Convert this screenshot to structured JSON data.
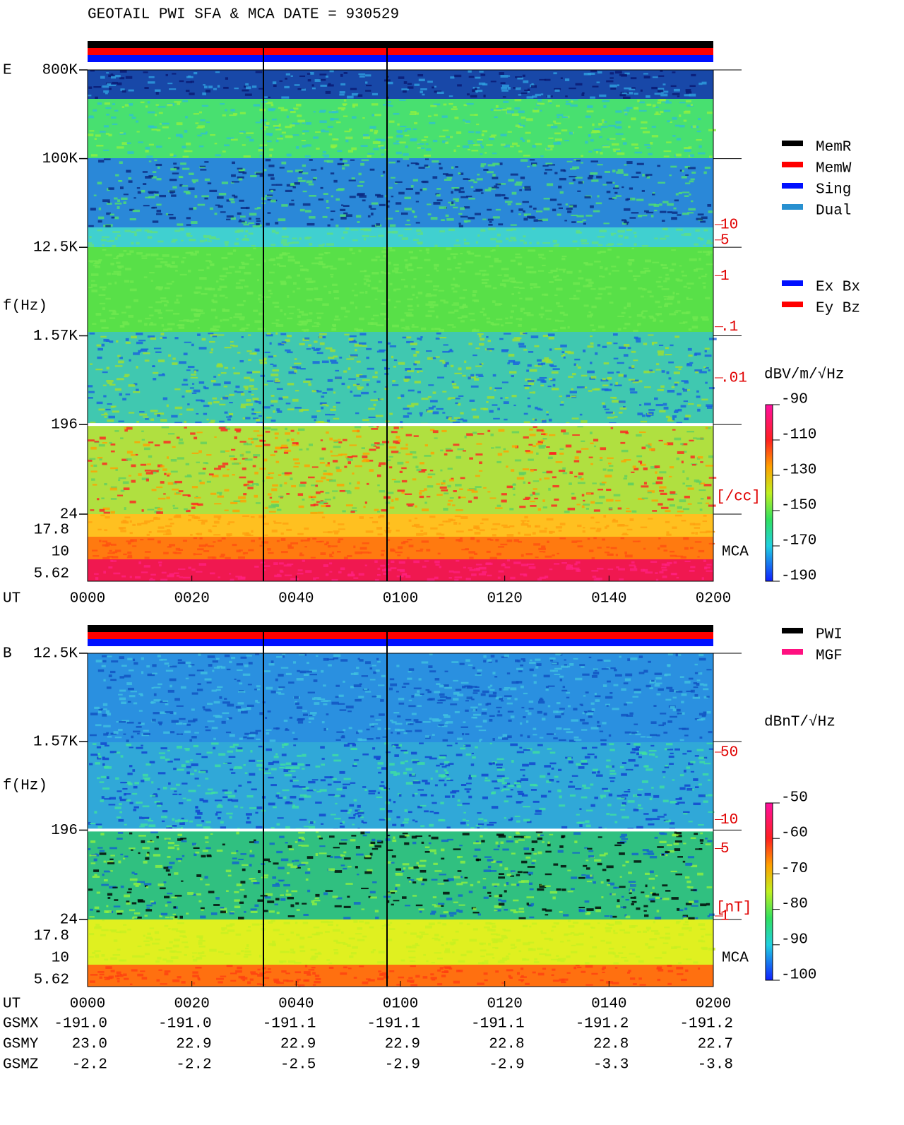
{
  "title": "GEOTAIL  PWI SFA & MCA   DATE = 930529",
  "chart_data": [
    {
      "type": "spectrogram",
      "panel_label": "E",
      "y_label": "f(Hz)",
      "x_label": "UT",
      "log_y": true,
      "ylim": [
        24,
        800000
      ],
      "yticks": [
        {
          "value": 800000,
          "label": "800K"
        },
        {
          "value": 100000,
          "label": "100K"
        },
        {
          "value": 12500,
          "label": "12.5K"
        },
        {
          "value": 1570,
          "label": "1.57K"
        },
        196,
        24
      ],
      "mca_label": "MCA",
      "mca_ticks": [
        17.8,
        10,
        5.62
      ],
      "xticks": [
        "0000",
        "0020",
        "0040",
        "0100",
        "0120",
        "0140",
        "0200"
      ],
      "density_unit": "[/cc]",
      "y2lim": [
        0.01,
        10
      ],
      "y2ticks": [
        10,
        5,
        1,
        {
          "value": 0.1,
          "label": ".1"
        },
        {
          "value": 0.01,
          "label": ".01"
        }
      ],
      "colorbar": {
        "unit": "dBV/m/√Hz",
        "clim": [
          -190,
          -90
        ],
        "ticks": [
          -90,
          -110,
          -130,
          -150,
          -170,
          -190
        ]
      },
      "legends": [
        [
          {
            "name": "MemR",
            "color": "#000000"
          },
          {
            "name": "MemW",
            "color": "#ff0000"
          },
          {
            "name": "Sing",
            "color": "#0010ff"
          },
          {
            "name": "Dual",
            "color": "#2890d0"
          }
        ],
        [
          {
            "name": "Ex Bx",
            "color": "#0010ff"
          },
          {
            "name": "Ey Bz",
            "color": "#ff0000"
          }
        ]
      ]
    },
    {
      "type": "spectrogram",
      "panel_label": "B",
      "y_label": "f(Hz)",
      "x_label": "UT",
      "log_y": true,
      "ylim": [
        24,
        12500
      ],
      "yticks": [
        {
          "value": 12500,
          "label": "12.5K"
        },
        {
          "value": 1570,
          "label": "1.57K"
        },
        196,
        24
      ],
      "mca_label": "MCA",
      "mca_ticks": [
        17.8,
        10,
        5.62
      ],
      "xticks": [
        "0000",
        "0020",
        "0040",
        "0100",
        "0120",
        "0140",
        "0200"
      ],
      "density_unit": "[nT]",
      "y2lim": [
        1,
        50
      ],
      "y2ticks": [
        50,
        10,
        5,
        1
      ],
      "colorbar": {
        "unit": "dBnT/√Hz",
        "clim": [
          -100,
          -50
        ],
        "ticks": [
          -50,
          -60,
          -70,
          -80,
          -90,
          -100
        ]
      },
      "legends": [
        [
          {
            "name": "PWI",
            "color": "#000000"
          },
          {
            "name": "MGF",
            "color": "#ff1080"
          }
        ]
      ]
    }
  ],
  "orbit": {
    "rows": [
      {
        "name": "GSMX",
        "values": [
          "-191.0",
          "-191.0",
          "-191.1",
          "-191.1",
          "-191.1",
          "-191.2",
          "-191.2"
        ]
      },
      {
        "name": "GSMY",
        "values": [
          "23.0",
          "22.9",
          "22.9",
          "22.9",
          "22.8",
          "22.8",
          "22.7"
        ]
      },
      {
        "name": "GSMZ",
        "values": [
          "-2.2",
          "-2.2",
          "-2.5",
          "-2.9",
          "-2.9",
          "-3.3",
          "-3.8"
        ]
      }
    ]
  }
}
